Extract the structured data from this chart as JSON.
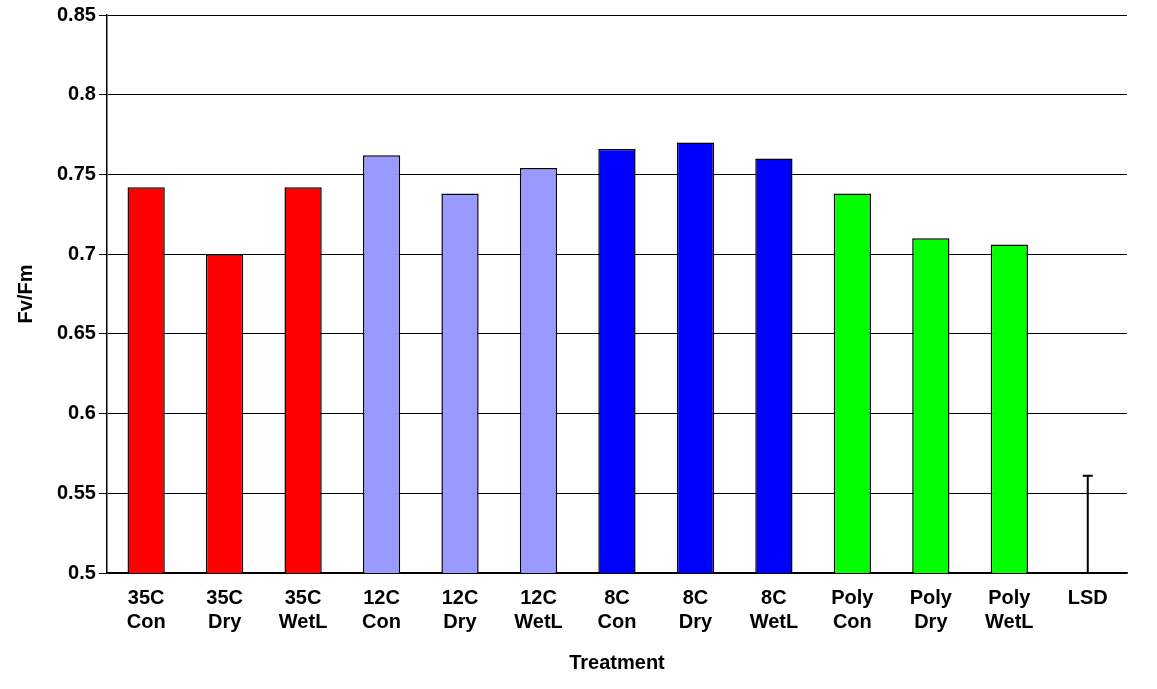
{
  "chart_data": {
    "type": "bar",
    "xlabel": "Treatment",
    "ylabel": "Fv/Fm",
    "categories": [
      "35C Con",
      "35C Dry",
      "35C WetL",
      "12C Con",
      "12C Dry",
      "12C WetL",
      "8C Con",
      "8C Dry",
      "8C WetL",
      "Poly Con",
      "Poly Dry",
      "Poly WetL",
      "LSD"
    ],
    "values": [
      0.742,
      0.7,
      0.742,
      0.762,
      0.738,
      0.754,
      0.766,
      0.77,
      0.76,
      0.738,
      0.71,
      0.706,
      0.5
    ],
    "colors": [
      "#ff0000",
      "#ff0000",
      "#ff0000",
      "#9999ff",
      "#9999ff",
      "#9999ff",
      "#0000ff",
      "#0000ff",
      "#0000ff",
      "#00ff00",
      "#00ff00",
      "#00ff00",
      "#ffffff"
    ],
    "errors": [
      null,
      null,
      null,
      null,
      null,
      null,
      null,
      null,
      null,
      null,
      null,
      null,
      [
        0.5,
        0.561
      ]
    ],
    "ylim": [
      0.5,
      0.85
    ],
    "yticks": [
      0.5,
      0.55,
      0.6,
      0.65,
      0.7,
      0.75,
      0.8,
      0.85
    ],
    "grid": "y"
  }
}
